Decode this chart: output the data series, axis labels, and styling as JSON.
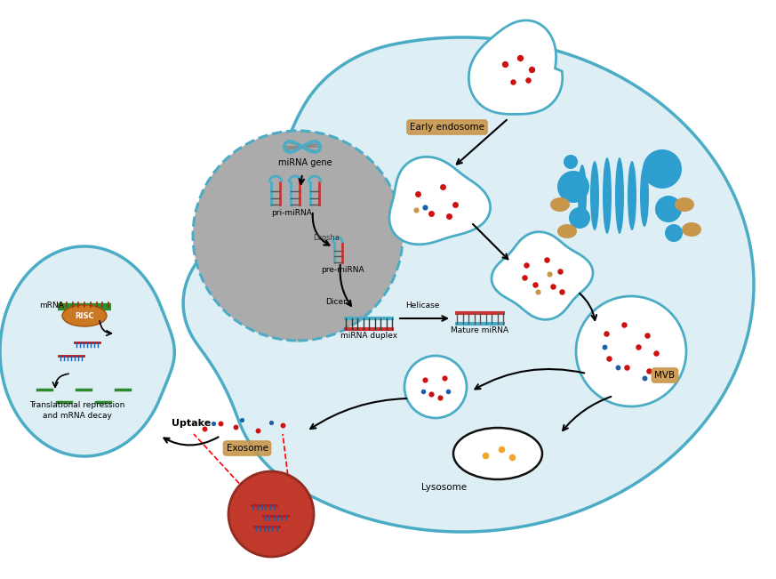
{
  "bg": "#ffffff",
  "cell_fill": "#ddeef5",
  "cell_edge": "#4bacc6",
  "cell_edge_lw": 2.5,
  "nucleus_fill": "#b0b0b0",
  "nucleus_edge": "#4bacc6",
  "recipient_fill": "#ddeef5",
  "recipient_edge": "#4bacc6",
  "white": "#ffffff",
  "red": "#cc1111",
  "blue": "#1a5fa8",
  "tan": "#c8964a",
  "golgi_blue": "#2e9ecf",
  "black": "#111111",
  "label_box_color": "#c8964a",
  "dna_blue": "#4bacc6",
  "dna_red": "#cc3333",
  "green": "#2d8a2d",
  "risc_color": "#cc7722",
  "exo_fill": "#c0392b",
  "exo_edge": "#922b21",
  "lyso_edge": "#111111",
  "lyso_fill": "#ffffff",
  "lyso_yellow": "#f5a623",
  "labels": {
    "early_endosome": "Early endosome",
    "mvb": "MVB",
    "lysosome": "Lysosome",
    "exosome": "Exosome",
    "uptake": "Uptake",
    "mirna_gene": "miRNA gene",
    "pri_mirna": "pri-miRNA",
    "pre_mirna": "pre-miRNA",
    "drosha": "Drosha",
    "dicer": "Dicer",
    "mirna_duplex": "miRNA duplex",
    "helicase": "Helicase",
    "mature_mirna": "Mature miRNA",
    "mrna": "mRNA",
    "risc": "RISC",
    "trans1": "Translational repression",
    "trans2": "and mRNA decay"
  }
}
